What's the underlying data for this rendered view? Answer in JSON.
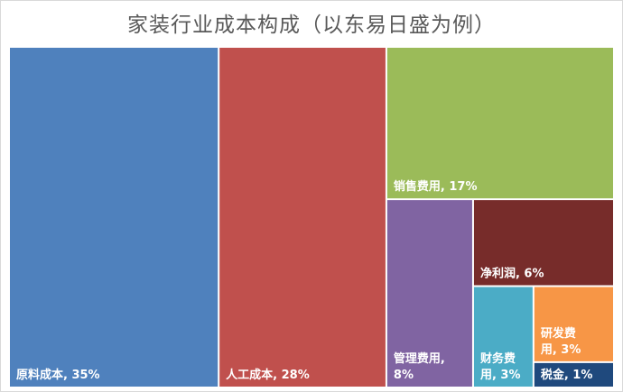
{
  "chart_data": {
    "type": "treemap",
    "title": "家装行业成本构成（以东易日盛为例）",
    "items": [
      {
        "name": "原料成本",
        "value": 35,
        "label": "原料成本, 35%",
        "lines": [
          "原料成本, 35%"
        ],
        "color": "#4f81bd"
      },
      {
        "name": "人工成本",
        "value": 28,
        "label": "人工成本, 28%",
        "lines": [
          "人工成本, 28%"
        ],
        "color": "#c0504d"
      },
      {
        "name": "销售费用",
        "value": 17,
        "label": "销售费用, 17%",
        "lines": [
          "销售费用, 17%"
        ],
        "color": "#9bbb59"
      },
      {
        "name": "净利润",
        "value": 6,
        "label": "净利润, 6%",
        "lines": [
          "净利润, 6%"
        ],
        "color": "#772c2a"
      },
      {
        "name": "管理费用",
        "value": 8,
        "label": "管理费用, 8%",
        "lines": [
          "管理费用,",
          "8%"
        ],
        "color": "#8064a2"
      },
      {
        "name": "财务费用",
        "value": 3,
        "label": "财务费用, 3%",
        "lines": [
          "财务费",
          "用, 3%"
        ],
        "color": "#4bacc6"
      },
      {
        "name": "研发费用",
        "value": 3,
        "label": "研发费用, 3%",
        "lines": [
          "研发费",
          "用, 3%"
        ],
        "color": "#f79646"
      },
      {
        "name": "税金",
        "value": 1,
        "label": "税金, 1%",
        "lines": [
          "税金, 1%"
        ],
        "color": "#1f497d"
      }
    ]
  }
}
